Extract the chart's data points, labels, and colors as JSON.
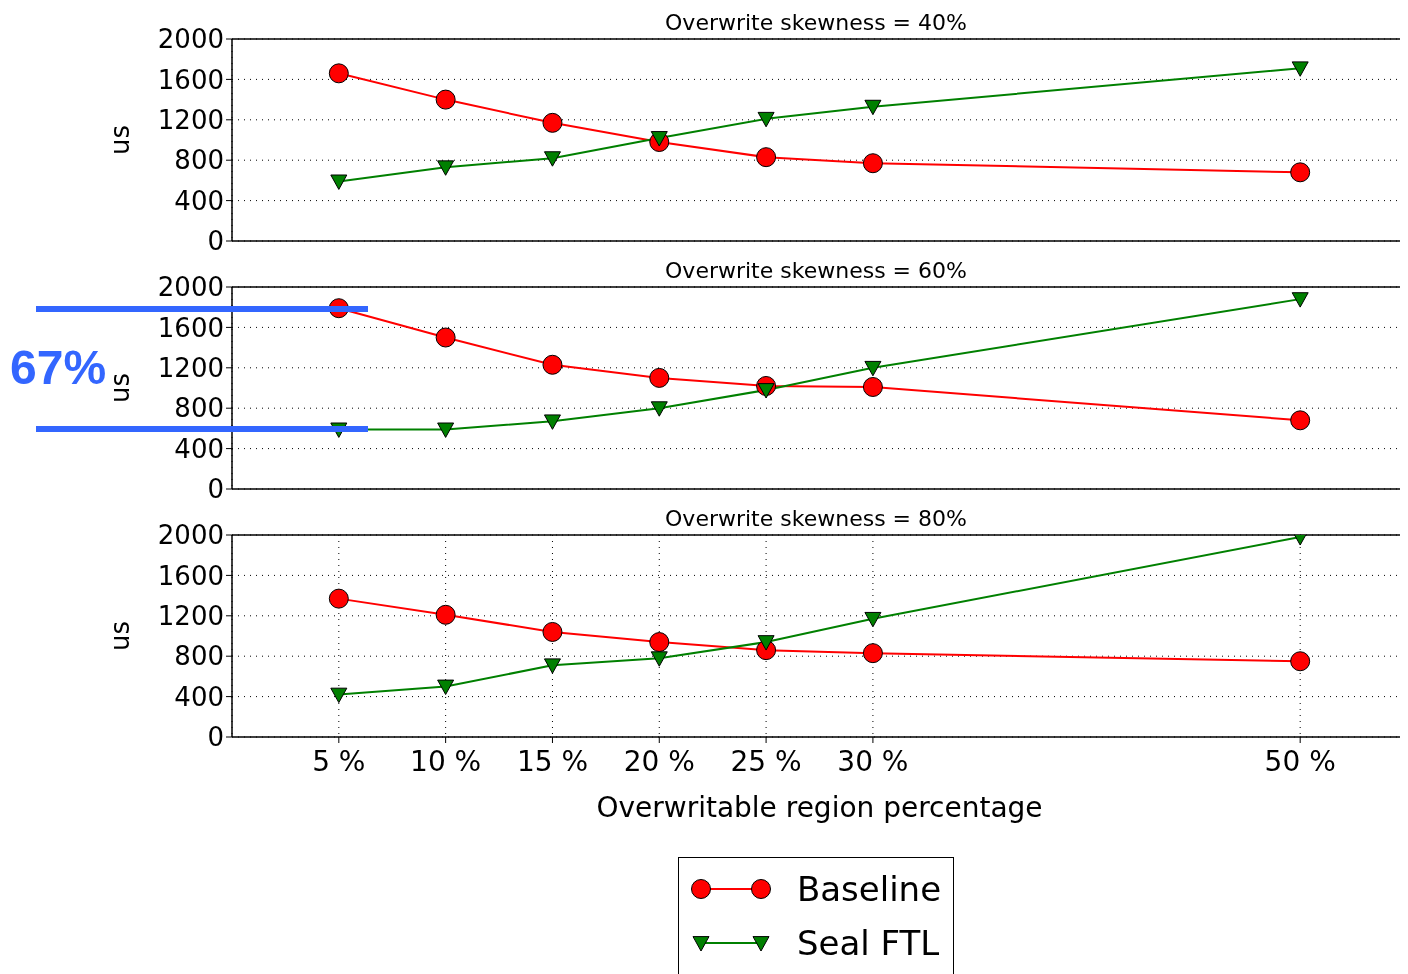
{
  "chart_data": [
    {
      "type": "line",
      "title": "Overwrite skewness = 40%",
      "ylabel": "us",
      "x": [
        5,
        10,
        15,
        20,
        25,
        30,
        50
      ],
      "xlim": [
        0,
        55
      ],
      "xticks": [
        {
          "value": 5,
          "label": null
        },
        {
          "value": 10,
          "label": null
        },
        {
          "value": 15,
          "label": null
        },
        {
          "value": 20,
          "label": null
        },
        {
          "value": 25,
          "label": null
        },
        {
          "value": 30,
          "label": null
        },
        {
          "value": 50,
          "label": null
        }
      ],
      "ylim": [
        0,
        2000
      ],
      "yticks": [
        0,
        400,
        800,
        1200,
        1600,
        2000
      ],
      "grid": true,
      "tick_labels": "y",
      "line_style": "solid",
      "series": [
        {
          "color": "#ff0000",
          "marker": "circle",
          "values": [
            1660,
            1400,
            1170,
            980,
            830,
            770,
            680
          ]
        },
        {
          "color": "#008000",
          "marker": "triangle",
          "values": [
            590,
            730,
            820,
            1020,
            1210,
            1330,
            1710
          ]
        }
      ]
    },
    {
      "type": "line",
      "title": "Overwrite skewness = 60%",
      "ylabel": "us",
      "annotations": [
        "67%"
      ],
      "x": [
        5,
        10,
        15,
        20,
        25,
        30,
        50
      ],
      "xlim": [
        0,
        55
      ],
      "xticks": [
        {
          "value": 5,
          "label": null
        },
        {
          "value": 10,
          "label": null
        },
        {
          "value": 15,
          "label": null
        },
        {
          "value": 20,
          "label": null
        },
        {
          "value": 25,
          "label": null
        },
        {
          "value": 30,
          "label": null
        },
        {
          "value": 50,
          "label": null
        }
      ],
      "ylim": [
        0,
        2000
      ],
      "yticks": [
        0,
        400,
        800,
        1200,
        1600,
        2000
      ],
      "grid": true,
      "tick_labels": "y",
      "line_style": "solid",
      "series": [
        {
          "color": "#ff0000",
          "marker": "circle",
          "values": [
            1790,
            1500,
            1230,
            1100,
            1020,
            1010,
            680
          ]
        },
        {
          "color": "#008000",
          "marker": "triangle",
          "values": [
            590,
            590,
            670,
            800,
            980,
            1200,
            1880
          ]
        }
      ]
    },
    {
      "type": "line",
      "title": "Overwrite skewness = 80%",
      "ylabel": "us",
      "xlabel": "Overwritable region percentage",
      "x": [
        5,
        10,
        15,
        20,
        25,
        30,
        50
      ],
      "xlim": [
        0,
        55
      ],
      "xticks": [
        {
          "value": 5,
          "label": "5 %"
        },
        {
          "value": 10,
          "label": "10 %"
        },
        {
          "value": 15,
          "label": "15 %"
        },
        {
          "value": 20,
          "label": "20 %"
        },
        {
          "value": 25,
          "label": "25 %"
        },
        {
          "value": 30,
          "label": "30 %"
        },
        {
          "value": 50,
          "label": "50 %"
        }
      ],
      "ylim": [
        0,
        2000
      ],
      "yticks": [
        0,
        400,
        800,
        1200,
        1600,
        2000
      ],
      "grid": true,
      "legend": "bottom",
      "line_style": "solid",
      "series": [
        {
          "name": "Baseline",
          "color": "#ff0000",
          "marker": "circle",
          "values": [
            1370,
            1210,
            1040,
            940,
            860,
            830,
            750
          ]
        },
        {
          "name": "Seal FTL",
          "color": "#008000",
          "marker": "triangle",
          "values": [
            420,
            500,
            710,
            780,
            940,
            1170,
            1980
          ]
        }
      ]
    }
  ]
}
